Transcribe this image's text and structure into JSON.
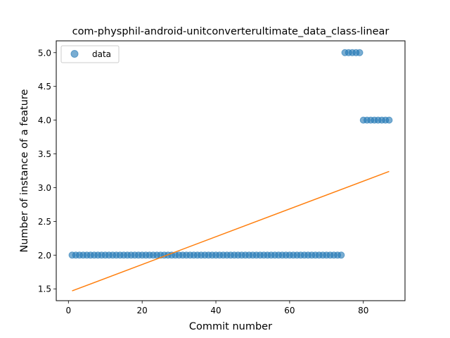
{
  "chart_data": {
    "type": "scatter",
    "title": "com-physphil-android-unitconverterultimate_data_class-linear",
    "xlabel": "Commit number",
    "ylabel": "Number of instance of a feature",
    "xlim": [
      -3.3,
      91.3
    ],
    "ylim": [
      1.325,
      5.175
    ],
    "xticks": [
      0,
      20,
      40,
      60,
      80
    ],
    "yticks": [
      1.5,
      2.0,
      2.5,
      3.0,
      3.5,
      4.0,
      4.5,
      5.0
    ],
    "xtick_labels": [
      "0",
      "20",
      "40",
      "60",
      "80"
    ],
    "ytick_labels": [
      "1.5",
      "2.0",
      "2.5",
      "3.0",
      "3.5",
      "4.0",
      "4.5",
      "5.0"
    ],
    "grid": false,
    "legend_position": "top-left",
    "series": [
      {
        "name": "data",
        "kind": "scatter",
        "color": "#1f77b4",
        "x": [
          1,
          2,
          3,
          4,
          5,
          6,
          7,
          8,
          9,
          10,
          11,
          12,
          13,
          14,
          15,
          16,
          17,
          18,
          19,
          20,
          21,
          22,
          23,
          24,
          25,
          26,
          27,
          28,
          29,
          30,
          31,
          32,
          33,
          34,
          35,
          36,
          37,
          38,
          39,
          40,
          41,
          42,
          43,
          44,
          45,
          46,
          47,
          48,
          49,
          50,
          51,
          52,
          53,
          54,
          55,
          56,
          57,
          58,
          59,
          60,
          61,
          62,
          63,
          64,
          65,
          66,
          67,
          68,
          69,
          70,
          71,
          72,
          73,
          74,
          75,
          76,
          77,
          78,
          79,
          80,
          81,
          82,
          83,
          84,
          85,
          86,
          87
        ],
        "y": [
          2,
          2,
          2,
          2,
          2,
          2,
          2,
          2,
          2,
          2,
          2,
          2,
          2,
          2,
          2,
          2,
          2,
          2,
          2,
          2,
          2,
          2,
          2,
          2,
          2,
          2,
          2,
          2,
          2,
          2,
          2,
          2,
          2,
          2,
          2,
          2,
          2,
          2,
          2,
          2,
          2,
          2,
          2,
          2,
          2,
          2,
          2,
          2,
          2,
          2,
          2,
          2,
          2,
          2,
          2,
          2,
          2,
          2,
          2,
          2,
          2,
          2,
          2,
          2,
          2,
          2,
          2,
          2,
          2,
          2,
          2,
          2,
          2,
          2,
          5,
          5,
          5,
          5,
          5,
          4,
          4,
          4,
          4,
          4,
          4,
          4,
          4
        ]
      },
      {
        "kind": "line",
        "color": "#ff7f0e",
        "x": [
          1,
          87
        ],
        "y": [
          1.47,
          3.24
        ]
      }
    ]
  }
}
